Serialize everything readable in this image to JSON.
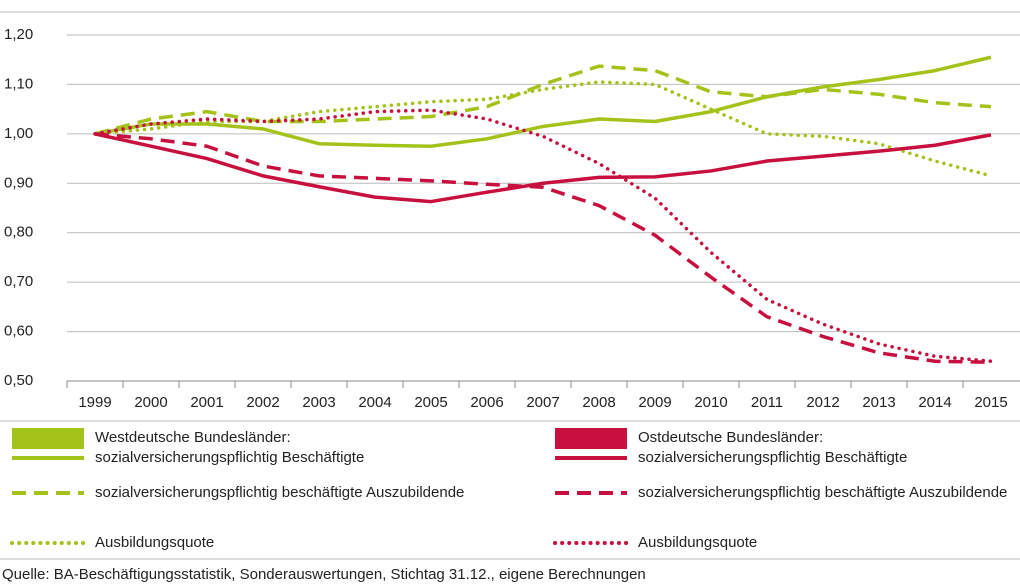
{
  "chart_data": {
    "type": "line",
    "categories": [
      "1999",
      "2000",
      "2001",
      "2002",
      "2003",
      "2004",
      "2005",
      "2006",
      "2007",
      "2008",
      "2009",
      "2010",
      "2011",
      "2012",
      "2013",
      "2014",
      "2015"
    ],
    "ylim": [
      0.5,
      1.2
    ],
    "yticks": [
      {
        "value": 0.5,
        "label": "0,50"
      },
      {
        "value": 0.6,
        "label": "0,60"
      },
      {
        "value": 0.7,
        "label": "0,70"
      },
      {
        "value": 0.8,
        "label": "0,80"
      },
      {
        "value": 0.9,
        "label": "0,90"
      },
      {
        "value": 1.0,
        "label": "1,00"
      },
      {
        "value": 1.1,
        "label": "1,10"
      },
      {
        "value": 1.2,
        "label": "1,20"
      }
    ],
    "grid": true,
    "legend_groups": [
      {
        "title": "Westdeutsche Bundesländer:",
        "color": "#a3c31b"
      },
      {
        "title": "Ostdeutsche Bundesländer:",
        "color": "#c8103e"
      }
    ],
    "series": [
      {
        "name": "sozialversicherungspflichtig Beschäftigte",
        "color": "#a3c31b",
        "style": "solid",
        "values": [
          1.0,
          1.02,
          1.02,
          1.01,
          0.98,
          0.977,
          0.975,
          0.99,
          1.015,
          1.03,
          1.025,
          1.045,
          1.075,
          1.095,
          1.11,
          1.128,
          1.155
        ]
      },
      {
        "name": "sozialversicherungspflichtig beschäftigte Auszubildende",
        "color": "#a3c31b",
        "style": "dashed",
        "values": [
          1.0,
          1.03,
          1.045,
          1.025,
          1.025,
          1.03,
          1.035,
          1.055,
          1.1,
          1.137,
          1.128,
          1.085,
          1.075,
          1.09,
          1.08,
          1.063,
          1.055
        ]
      },
      {
        "name": "Ausbildungsquote",
        "color": "#a3c31b",
        "style": "dotted",
        "values": [
          1.0,
          1.01,
          1.025,
          1.025,
          1.045,
          1.055,
          1.065,
          1.07,
          1.09,
          1.105,
          1.1,
          1.05,
          1.0,
          0.995,
          0.98,
          0.945,
          0.915
        ]
      },
      {
        "name": "sozialversicherungspflichtig Beschäftigte",
        "color": "#c8103e",
        "style": "solid",
        "values": [
          1.0,
          0.975,
          0.95,
          0.915,
          0.893,
          0.872,
          0.863,
          0.882,
          0.9,
          0.912,
          0.913,
          0.925,
          0.945,
          0.955,
          0.965,
          0.977,
          0.998
        ]
      },
      {
        "name": "sozialversicherungspflichtig beschäftigte Auszubildende",
        "color": "#c8103e",
        "style": "dashed",
        "values": [
          1.0,
          0.99,
          0.975,
          0.935,
          0.915,
          0.91,
          0.905,
          0.898,
          0.892,
          0.855,
          0.795,
          0.71,
          0.63,
          0.59,
          0.557,
          0.54,
          0.538
        ]
      },
      {
        "name": "Ausbildungsquote",
        "color": "#c8103e",
        "style": "dotted",
        "values": [
          1.0,
          1.02,
          1.03,
          1.025,
          1.03,
          1.045,
          1.048,
          1.03,
          0.995,
          0.94,
          0.87,
          0.76,
          0.665,
          0.615,
          0.575,
          0.55,
          0.54
        ]
      }
    ],
    "source": "Quelle: BA-Beschäftigungsstatistik, Sonderauswertungen, Stichtag 31.12., eigene Berechnungen"
  }
}
